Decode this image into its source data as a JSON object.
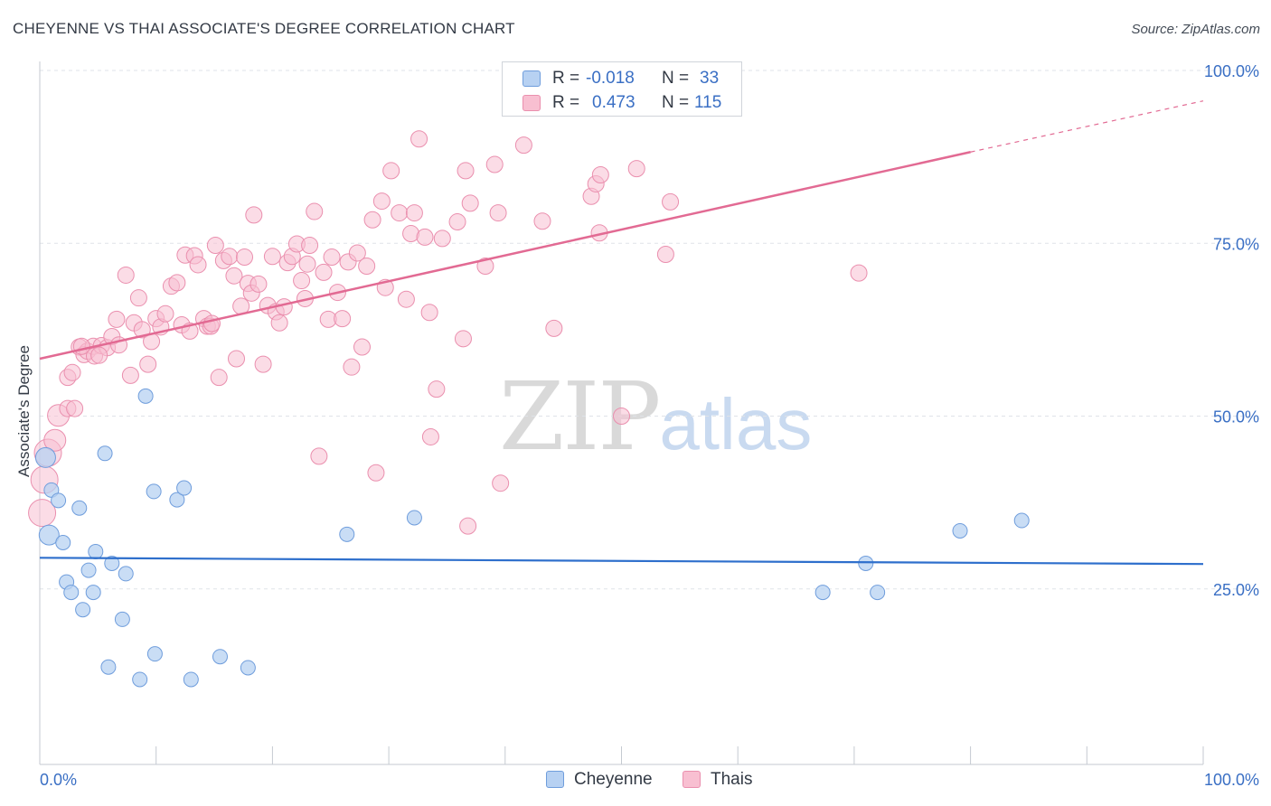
{
  "header": {
    "title": "CHEYENNE VS THAI ASSOCIATE'S DEGREE CORRELATION CHART",
    "source": "Source: ZipAtlas.com"
  },
  "watermark": {
    "part1": "ZIP",
    "part2": "atlas"
  },
  "colors": {
    "cheyenne_fill": "#b7d1f2",
    "cheyenne_stroke": "#6f9ddc",
    "cheyenne_line": "#2e6fcc",
    "thai_fill": "#f8bfd1",
    "thai_stroke": "#ea8fae",
    "thai_line": "#e26a93",
    "tick_text": "#3a6fc4",
    "grid": "#dfe3e8"
  },
  "legend": {
    "rows": [
      {
        "series": "Cheyenne",
        "r_label": "R =",
        "r_value": "-0.018",
        "n_label": "N =",
        "n_value": "33"
      },
      {
        "series": "Thais",
        "r_label": "R =",
        "r_value": "0.473",
        "n_label": "N =",
        "n_value": "115"
      }
    ]
  },
  "bottom_legend": [
    "Cheyenne",
    "Thais"
  ],
  "chart_data": {
    "type": "scatter",
    "title": "CHEYENNE VS THAI ASSOCIATE'S DEGREE CORRELATION CHART",
    "xlabel": "",
    "ylabel": "Associate's Degree",
    "xlim": [
      0,
      100
    ],
    "ylim": [
      0,
      103
    ],
    "x_tick_labels": [
      "0.0%",
      "100.0%"
    ],
    "y_tick_labels": [
      "25.0%",
      "50.0%",
      "75.0%",
      "100.0%"
    ],
    "y_ticks": [
      25,
      50,
      75,
      100
    ],
    "grid": true,
    "series": [
      {
        "name": "Cheyenne",
        "r": -0.018,
        "n": 33,
        "trend": {
          "x": [
            0,
            100
          ],
          "y": [
            29.5,
            28.6
          ]
        },
        "points": [
          [
            0.5,
            44
          ],
          [
            1.0,
            39.3
          ],
          [
            1.6,
            37.8
          ],
          [
            0.8,
            32.8
          ],
          [
            2.0,
            31.7
          ],
          [
            3.4,
            36.7
          ],
          [
            5.6,
            44.6
          ],
          [
            9.1,
            52.9
          ],
          [
            2.3,
            26.0
          ],
          [
            2.7,
            24.5
          ],
          [
            3.7,
            22.0
          ],
          [
            4.2,
            27.7
          ],
          [
            4.6,
            24.5
          ],
          [
            4.8,
            30.4
          ],
          [
            6.2,
            28.7
          ],
          [
            7.4,
            27.2
          ],
          [
            7.1,
            20.6
          ],
          [
            9.8,
            39.1
          ],
          [
            11.8,
            37.9
          ],
          [
            12.4,
            39.6
          ],
          [
            5.9,
            13.7
          ],
          [
            8.6,
            11.9
          ],
          [
            9.9,
            15.6
          ],
          [
            13.0,
            11.9
          ],
          [
            15.5,
            15.2
          ],
          [
            17.9,
            13.6
          ],
          [
            26.4,
            32.9
          ],
          [
            32.2,
            35.3
          ],
          [
            67.3,
            24.5
          ],
          [
            71.0,
            28.7
          ],
          [
            72.0,
            24.5
          ],
          [
            79.1,
            33.4
          ],
          [
            84.4,
            34.9
          ]
        ]
      },
      {
        "name": "Thais",
        "r": 0.473,
        "n": 115,
        "trend": {
          "x": [
            0,
            80
          ],
          "y": [
            58.3,
            88.2
          ]
        },
        "trend_extension": {
          "x": [
            80,
            100
          ],
          "y": [
            88.2,
            95.6
          ]
        },
        "points": [
          [
            0.2,
            36
          ],
          [
            0.4,
            40.8
          ],
          [
            0.7,
            44.7
          ],
          [
            1.3,
            46.5
          ],
          [
            1.6,
            50.1
          ],
          [
            2.4,
            51.1
          ],
          [
            3.0,
            51.1
          ],
          [
            2.4,
            55.6
          ],
          [
            2.8,
            56.3
          ],
          [
            3.4,
            60.0
          ],
          [
            3.8,
            58.9
          ],
          [
            4.1,
            59.4
          ],
          [
            4.6,
            60.1
          ],
          [
            4.7,
            58.7
          ],
          [
            5.3,
            60.2
          ],
          [
            5.8,
            59.9
          ],
          [
            6.2,
            61.5
          ],
          [
            6.8,
            60.3
          ],
          [
            6.6,
            64.0
          ],
          [
            7.4,
            70.4
          ],
          [
            7.8,
            55.9
          ],
          [
            8.1,
            63.5
          ],
          [
            8.5,
            67.1
          ],
          [
            8.8,
            62.5
          ],
          [
            9.3,
            57.5
          ],
          [
            9.6,
            60.8
          ],
          [
            10.0,
            64.1
          ],
          [
            10.4,
            62.9
          ],
          [
            10.8,
            64.8
          ],
          [
            11.3,
            68.8
          ],
          [
            11.8,
            69.3
          ],
          [
            12.2,
            63.2
          ],
          [
            12.5,
            73.3
          ],
          [
            12.9,
            62.3
          ],
          [
            13.3,
            73.2
          ],
          [
            13.6,
            71.9
          ],
          [
            14.1,
            64.1
          ],
          [
            14.4,
            63.0
          ],
          [
            14.7,
            63.0
          ],
          [
            15.1,
            74.7
          ],
          [
            15.4,
            55.6
          ],
          [
            15.8,
            72.5
          ],
          [
            16.3,
            73.1
          ],
          [
            16.7,
            70.3
          ],
          [
            16.9,
            58.3
          ],
          [
            17.3,
            65.9
          ],
          [
            17.6,
            73.0
          ],
          [
            17.9,
            69.2
          ],
          [
            18.2,
            67.8
          ],
          [
            18.4,
            79.1
          ],
          [
            18.8,
            69.1
          ],
          [
            19.2,
            57.5
          ],
          [
            19.6,
            66.0
          ],
          [
            20.0,
            73.1
          ],
          [
            20.3,
            65.1
          ],
          [
            20.6,
            63.5
          ],
          [
            21.0,
            65.8
          ],
          [
            21.3,
            72.2
          ],
          [
            21.7,
            73.1
          ],
          [
            22.1,
            74.9
          ],
          [
            22.5,
            69.6
          ],
          [
            22.8,
            67.0
          ],
          [
            23.2,
            74.7
          ],
          [
            23.6,
            79.6
          ],
          [
            24.0,
            44.2
          ],
          [
            24.4,
            70.8
          ],
          [
            24.8,
            64.0
          ],
          [
            25.1,
            73.0
          ],
          [
            25.6,
            67.9
          ],
          [
            26.0,
            64.1
          ],
          [
            26.5,
            72.3
          ],
          [
            26.8,
            57.1
          ],
          [
            27.3,
            73.6
          ],
          [
            27.7,
            60.0
          ],
          [
            28.1,
            71.7
          ],
          [
            28.6,
            78.4
          ],
          [
            28.9,
            41.8
          ],
          [
            29.4,
            81.1
          ],
          [
            29.7,
            68.6
          ],
          [
            30.2,
            85.5
          ],
          [
            30.9,
            79.4
          ],
          [
            31.5,
            66.9
          ],
          [
            31.9,
            76.4
          ],
          [
            32.2,
            79.4
          ],
          [
            32.6,
            90.1
          ],
          [
            33.1,
            75.9
          ],
          [
            33.5,
            65.0
          ],
          [
            33.6,
            47.0
          ],
          [
            34.1,
            53.9
          ],
          [
            34.6,
            75.7
          ],
          [
            35.9,
            78.1
          ],
          [
            36.4,
            61.2
          ],
          [
            36.6,
            85.5
          ],
          [
            36.8,
            34.1
          ],
          [
            37.0,
            80.8
          ],
          [
            38.3,
            71.7
          ],
          [
            39.1,
            86.4
          ],
          [
            39.4,
            79.4
          ],
          [
            39.6,
            40.3
          ],
          [
            41.6,
            89.2
          ],
          [
            43.2,
            78.2
          ],
          [
            44.2,
            62.7
          ],
          [
            47.4,
            81.8
          ],
          [
            47.8,
            83.6
          ],
          [
            48.2,
            84.9
          ],
          [
            48.1,
            76.5
          ],
          [
            50.0,
            50.0
          ],
          [
            51.3,
            85.8
          ],
          [
            53.8,
            73.4
          ],
          [
            54.2,
            81.0
          ],
          [
            70.4,
            70.7
          ],
          [
            23.0,
            72.0
          ],
          [
            14.8,
            63.4
          ],
          [
            3.6,
            60.1
          ],
          [
            5.1,
            58.8
          ]
        ]
      }
    ]
  }
}
